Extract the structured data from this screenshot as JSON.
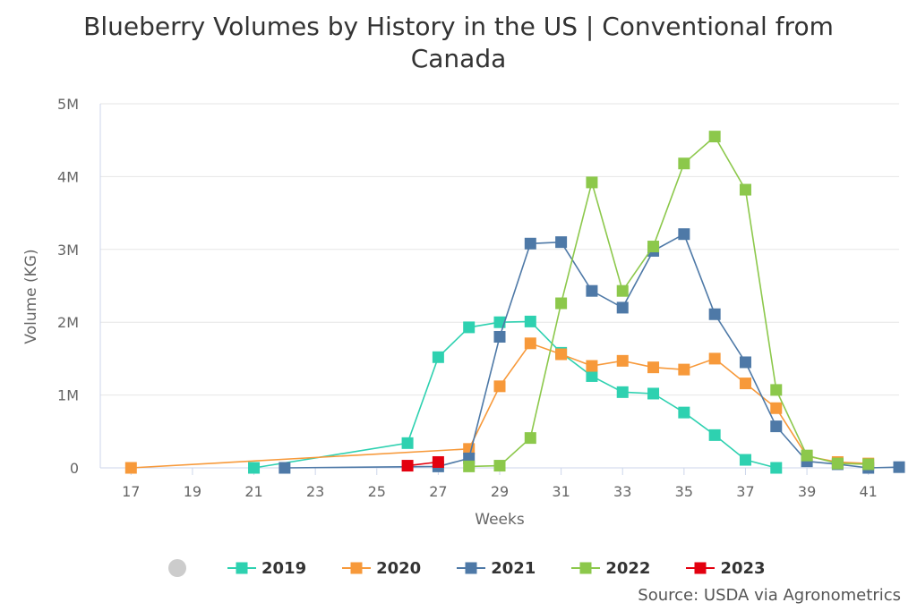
{
  "chart_data": {
    "type": "line",
    "title_line1": "Blueberry Volumes by History in the US | Conventional from",
    "title_line2": "Canada",
    "xlabel": "Weeks",
    "ylabel": "Volume (KG)",
    "xlim": [
      16,
      42
    ],
    "ylim": [
      0,
      5000000
    ],
    "x_ticks": [
      17,
      19,
      21,
      23,
      25,
      27,
      29,
      31,
      33,
      35,
      37,
      39,
      41
    ],
    "y_ticks": [
      0,
      1000000,
      2000000,
      3000000,
      4000000,
      5000000
    ],
    "y_tick_labels": [
      "0",
      "1M",
      "2M",
      "3M",
      "4M",
      "5M"
    ],
    "grid": "horizontal",
    "legend_position": "bottom",
    "series": [
      {
        "name": "2019",
        "color": "#2ed1b0",
        "points": [
          [
            21,
            0
          ],
          [
            26,
            340000
          ],
          [
            27,
            1520000
          ],
          [
            28,
            1930000
          ],
          [
            29,
            2000000
          ],
          [
            30,
            2010000
          ],
          [
            31,
            1580000
          ],
          [
            32,
            1260000
          ],
          [
            33,
            1040000
          ],
          [
            34,
            1020000
          ],
          [
            35,
            760000
          ],
          [
            36,
            450000
          ],
          [
            37,
            110000
          ],
          [
            38,
            0
          ]
        ]
      },
      {
        "name": "2020",
        "color": "#f7993a",
        "points": [
          [
            17,
            0
          ],
          [
            28,
            260000
          ],
          [
            29,
            1120000
          ],
          [
            30,
            1710000
          ],
          [
            31,
            1560000
          ],
          [
            32,
            1400000
          ],
          [
            33,
            1470000
          ],
          [
            34,
            1380000
          ],
          [
            35,
            1350000
          ],
          [
            36,
            1500000
          ],
          [
            37,
            1160000
          ],
          [
            38,
            820000
          ],
          [
            39,
            160000
          ],
          [
            40,
            80000
          ],
          [
            41,
            60000
          ]
        ]
      },
      {
        "name": "2021",
        "color": "#4e79a7",
        "points": [
          [
            22,
            0
          ],
          [
            27,
            20000
          ],
          [
            28,
            130000
          ],
          [
            29,
            1800000
          ],
          [
            30,
            3080000
          ],
          [
            31,
            3100000
          ],
          [
            32,
            2430000
          ],
          [
            33,
            2200000
          ],
          [
            34,
            2980000
          ],
          [
            35,
            3210000
          ],
          [
            36,
            2110000
          ],
          [
            37,
            1450000
          ],
          [
            38,
            570000
          ],
          [
            39,
            90000
          ],
          [
            40,
            50000
          ],
          [
            41,
            0
          ],
          [
            42,
            10000
          ]
        ]
      },
      {
        "name": "2022",
        "color": "#8cc84b",
        "points": [
          [
            28,
            20000
          ],
          [
            29,
            30000
          ],
          [
            30,
            410000
          ],
          [
            31,
            2260000
          ],
          [
            32,
            3920000
          ],
          [
            33,
            2430000
          ],
          [
            34,
            3040000
          ],
          [
            35,
            4180000
          ],
          [
            36,
            4550000
          ],
          [
            37,
            3820000
          ],
          [
            38,
            1070000
          ],
          [
            39,
            170000
          ],
          [
            40,
            60000
          ],
          [
            41,
            50000
          ]
        ]
      },
      {
        "name": "2023",
        "color": "#e3000f",
        "points": [
          [
            26,
            30000
          ],
          [
            27,
            80000
          ]
        ]
      }
    ],
    "source": "Source: USDA via Agronometrics"
  }
}
